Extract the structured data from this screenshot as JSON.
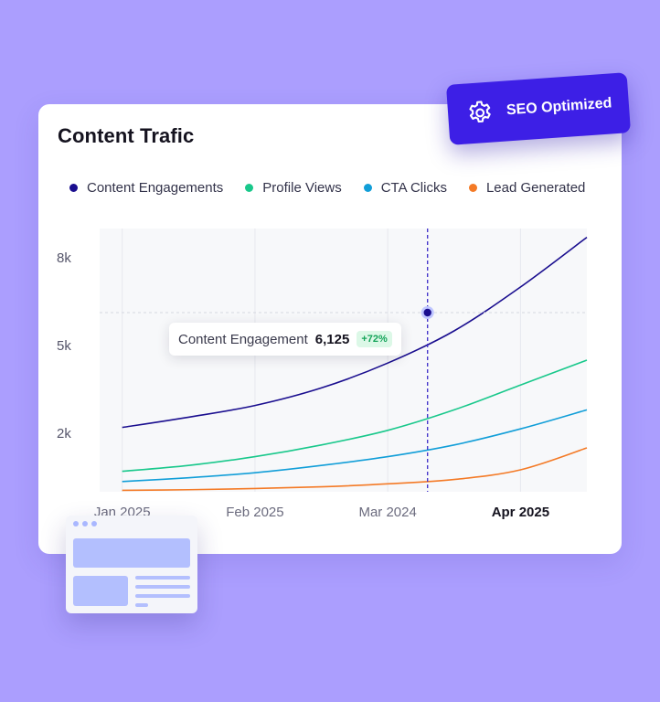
{
  "card": {
    "title": "Content Trafic"
  },
  "legend": [
    {
      "label": "Content Engagements",
      "color": "#1a0e8f"
    },
    {
      "label": "Profile Views",
      "color": "#19c88b"
    },
    {
      "label": "CTA Clicks",
      "color": "#119ed8"
    },
    {
      "label": "Lead Generated",
      "color": "#f47a26"
    }
  ],
  "tooltip": {
    "label": "Content Engagement",
    "value": "6,125",
    "change": "+72%"
  },
  "badge": {
    "label": "SEO Optimized",
    "icon": "gear-icon"
  },
  "chart_data": {
    "type": "line",
    "x_labels": [
      "Jan 2025",
      "Feb 2025",
      "Mar 2024",
      "Apr 2025"
    ],
    "active_x_label": "Apr 2025",
    "y_ticks": [
      "8k",
      "5k",
      "2k"
    ],
    "y_tick_values": [
      8000,
      5000,
      2000
    ],
    "ylim": [
      0,
      9000
    ],
    "x": [
      0,
      0.5,
      1,
      1.5,
      2,
      2.5,
      3,
      3.5
    ],
    "series": [
      {
        "name": "Content Engagements",
        "color": "#1a0e8f",
        "values": [
          2200,
          2550,
          2950,
          3550,
          4400,
          5500,
          7000,
          8700
        ]
      },
      {
        "name": "Profile Views",
        "color": "#19c88b",
        "values": [
          700,
          900,
          1200,
          1600,
          2100,
          2800,
          3650,
          4500
        ]
      },
      {
        "name": "CTA Clicks",
        "color": "#119ed8",
        "values": [
          350,
          480,
          650,
          900,
          1200,
          1600,
          2150,
          2800
        ]
      },
      {
        "name": "Lead Generated",
        "color": "#f47a26",
        "values": [
          50,
          70,
          110,
          170,
          270,
          420,
          750,
          1500
        ]
      }
    ],
    "highlight": {
      "x": 2.3,
      "series": "Content Engagements",
      "value": 6125
    },
    "grid": true
  }
}
